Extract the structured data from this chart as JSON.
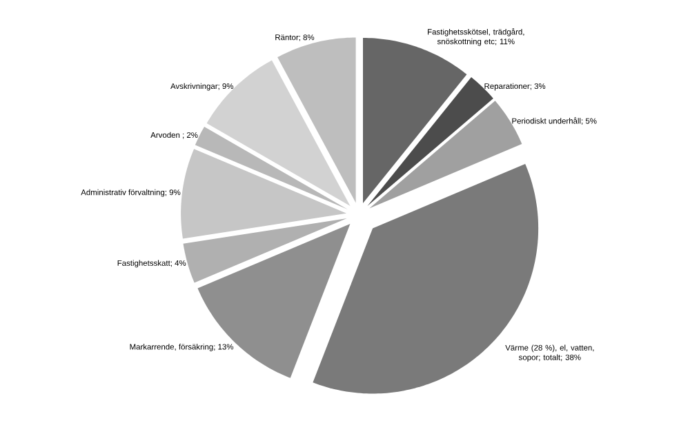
{
  "chart_data": {
    "type": "pie",
    "categories": [
      "Fastighetsskötsel, trädgård, snöskottning etc",
      "Reparationer",
      "Periodiskt underhåll",
      "Värme (28 %), el, vatten, sopor; totalt",
      "Markarrende, försäkring",
      "Fastighetsskatt",
      "Administrativ förvaltning",
      "Arvoden",
      "Avskrivningar",
      "Räntor"
    ],
    "values": [
      11,
      3,
      5,
      38,
      13,
      4,
      9,
      2,
      9,
      8
    ],
    "colors": [
      "#666666",
      "#4c4c4c",
      "#a0a0a0",
      "#7a7a7a",
      "#8f8f8f",
      "#b0b0b0",
      "#c6c6c6",
      "#b8b8b8",
      "#d2d2d2",
      "#bebebe"
    ],
    "value_labels": [
      "; 11%",
      "; 3%",
      "; 5%",
      "; 38%",
      "; 13%",
      "; 4%",
      "; 9%",
      " ; 2%",
      "; 9%",
      "; 8%"
    ]
  }
}
